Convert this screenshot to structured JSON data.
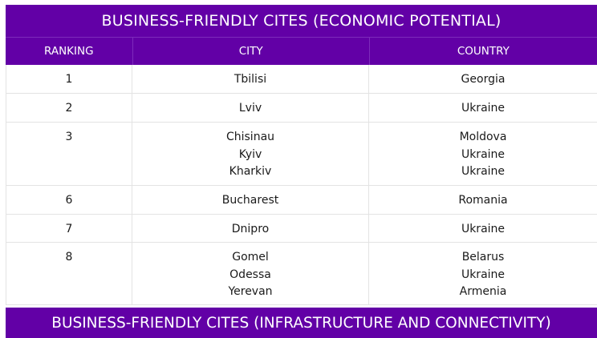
{
  "table1": {
    "title": "BUSINESS-FRIENDLY CITES (ECONOMIC POTENTIAL)",
    "headers": {
      "ranking": "RANKING",
      "city": "CITY",
      "country": "COUNTRY"
    },
    "rows": [
      {
        "rank": "1",
        "cities": [
          "Tbilisi"
        ],
        "countries": [
          "Georgia"
        ]
      },
      {
        "rank": "2",
        "cities": [
          "Lviv"
        ],
        "countries": [
          "Ukraine"
        ]
      },
      {
        "rank": "3",
        "cities": [
          "Chisinau",
          "Kyiv",
          "Kharkiv"
        ],
        "countries": [
          "Moldova",
          "Ukraine",
          "Ukraine"
        ]
      },
      {
        "rank": "6",
        "cities": [
          "Bucharest"
        ],
        "countries": [
          "Romania"
        ]
      },
      {
        "rank": "7",
        "cities": [
          "Dnipro"
        ],
        "countries": [
          "Ukraine"
        ]
      },
      {
        "rank": "8",
        "cities": [
          "Gomel",
          "Odessa",
          "Yerevan"
        ],
        "countries": [
          "Belarus",
          "Ukraine",
          "Armenia"
        ]
      }
    ]
  },
  "table2": {
    "title": "BUSINESS-FRIENDLY CITES (INFRASTRUCTURE AND CONNECTIVITY)"
  },
  "colors": {
    "header_purple": "#6200a6",
    "row_border": "#e3e3e3"
  }
}
